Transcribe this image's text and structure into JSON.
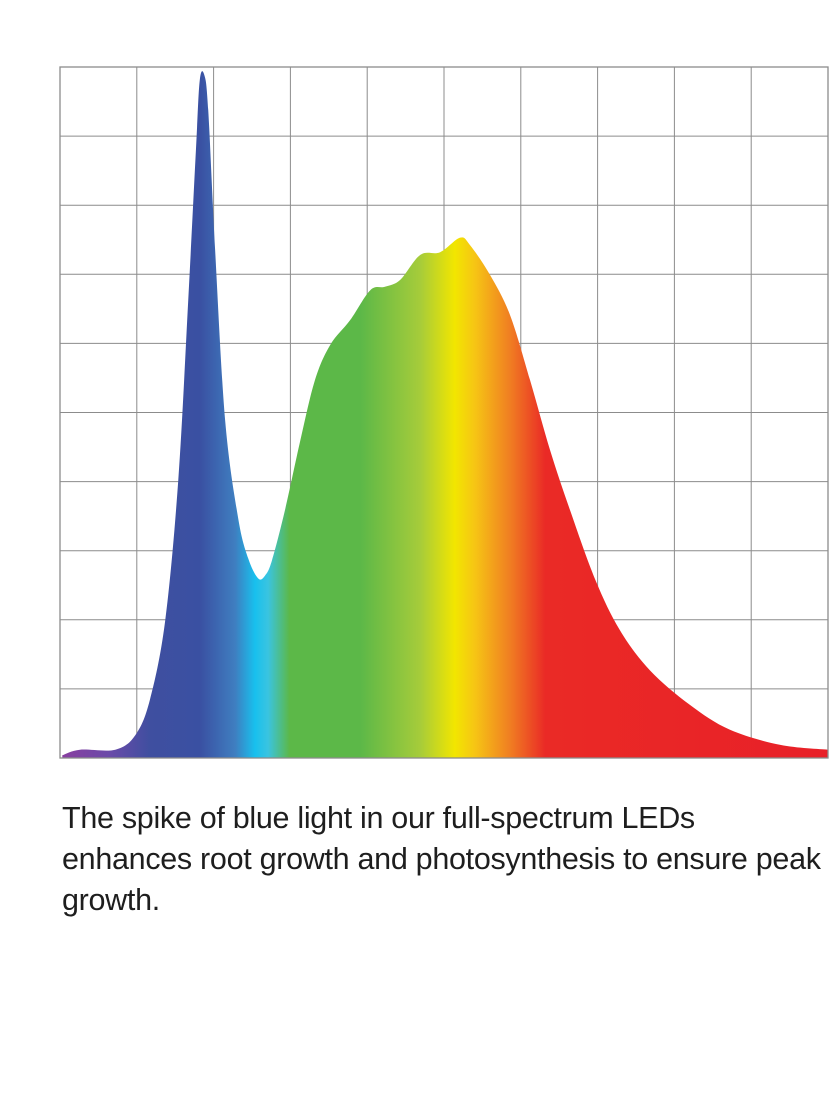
{
  "chart_data": {
    "type": "area",
    "title": "",
    "xlabel": "",
    "ylabel": "",
    "xlim": [
      0,
      10
    ],
    "ylim": [
      0,
      10
    ],
    "grid": true,
    "x_gridlines": 10,
    "y_gridlines": 10,
    "tick_labels": "none",
    "fill": "spectrum gradient (violet → blue → cyan → green → yellow → orange → red)",
    "series": [
      {
        "x": [
          0.03,
          0.26,
          0.72,
          0.98,
          1.17,
          1.37,
          1.54,
          1.67,
          1.77,
          1.82,
          1.88,
          1.93,
          2.02,
          2.15,
          2.32,
          2.45,
          2.58,
          2.67,
          2.76,
          2.93,
          3.13,
          3.32,
          3.52,
          3.78,
          4.04,
          4.23,
          4.43,
          4.69,
          4.95,
          5.21,
          5.34,
          5.6,
          5.86,
          6.12,
          6.38,
          6.64,
          6.97,
          7.29,
          7.68,
          8.2,
          8.72,
          9.38,
          10.0
        ],
        "y": [
          0.04,
          0.12,
          0.12,
          0.33,
          0.84,
          1.99,
          4.02,
          6.63,
          8.8,
          9.81,
          9.88,
          9.38,
          7.35,
          4.89,
          3.47,
          2.89,
          2.6,
          2.64,
          2.86,
          3.59,
          4.6,
          5.47,
          5.98,
          6.34,
          6.77,
          6.82,
          6.92,
          7.28,
          7.32,
          7.53,
          7.42,
          6.99,
          6.41,
          5.47,
          4.46,
          3.59,
          2.58,
          1.85,
          1.27,
          0.77,
          0.41,
          0.19,
          0.12
        ]
      }
    ],
    "gradient_colors": [
      "#8a3fa0",
      "#6a4aa8",
      "#3f4fa0",
      "#3a50a2",
      "#3f7ec0",
      "#18c0ee",
      "#3ac4e0",
      "#5cb848",
      "#5cb848",
      "#a6cc3a",
      "#f2e600",
      "#f6c514",
      "#f07e22",
      "#ea2a26",
      "#e82028"
    ],
    "gradient_positions": [
      0,
      0.065,
      0.117,
      0.182,
      0.228,
      0.254,
      0.271,
      0.299,
      0.391,
      0.469,
      0.514,
      0.54,
      0.586,
      0.632,
      1.0
    ],
    "grid_color": "#8c8c8c"
  },
  "caption": "The spike of blue light in our full-spectrum LEDs enhances root growth and photosynthesis to ensure peak growth."
}
